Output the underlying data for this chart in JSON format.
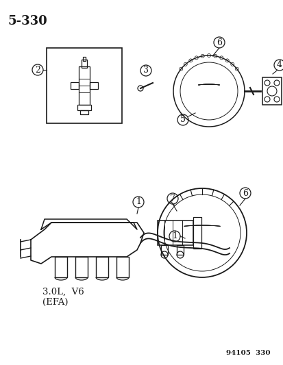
{
  "title": "5-330",
  "footer": "94105  330",
  "label_2": "2",
  "label_3": "3",
  "label_4": "4",
  "label_5": "5",
  "label_6": "6",
  "label_7": "7",
  "label_1": "1",
  "engine_label": "3.0L,  V6\n(EFA)",
  "bg_color": "#ffffff",
  "line_color": "#1a1a1a",
  "text_color": "#1a1a1a",
  "title_fontsize": 13,
  "label_fontsize": 9,
  "footer_fontsize": 7.5
}
